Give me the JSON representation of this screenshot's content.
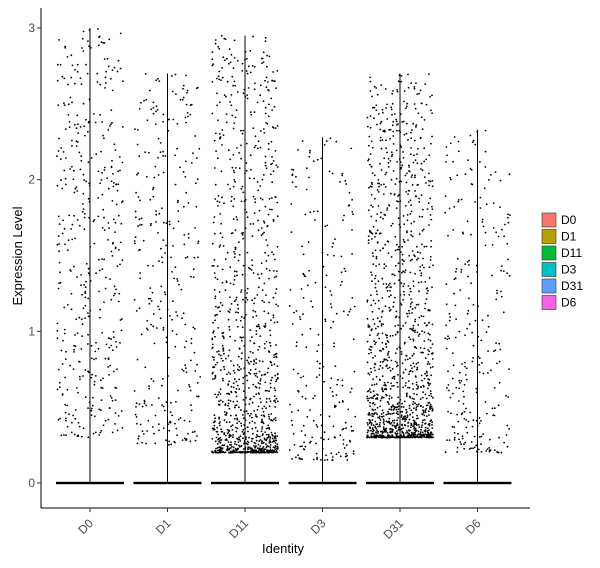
{
  "chart_data": {
    "type": "scatter",
    "subtype": "violin-jitter",
    "title": "",
    "xlabel": "Identity",
    "ylabel": "Expression Level",
    "categories": [
      "D0",
      "D1",
      "D11",
      "D3",
      "D31",
      "D6"
    ],
    "colors": [
      "#F8766D",
      "#B79F00",
      "#00BA38",
      "#00BFC4",
      "#619CFF",
      "#F564E3"
    ],
    "ylim": [
      -0.17,
      3.05
    ],
    "yticks": [
      0,
      1,
      2,
      3
    ],
    "legend_position": "right",
    "grid": false,
    "series": [
      {
        "name": "D0",
        "max": 3.0,
        "zero_band": true,
        "nonzero_range": [
          0.3,
          3.0
        ],
        "density": "medium"
      },
      {
        "name": "D1",
        "max": 2.7,
        "zero_band": true,
        "nonzero_range": [
          0.25,
          2.7
        ],
        "density": "low"
      },
      {
        "name": "D11",
        "max": 2.95,
        "zero_band": true,
        "nonzero_range": [
          0.2,
          2.95
        ],
        "density": "high, concentrated 0.2-0.9"
      },
      {
        "name": "D3",
        "max": 2.28,
        "zero_band": true,
        "nonzero_range": [
          0.15,
          2.28
        ],
        "density": "low"
      },
      {
        "name": "D31",
        "max": 2.7,
        "zero_band": true,
        "nonzero_range": [
          0.3,
          2.7
        ],
        "density": "very high, concentrated 0.3-1.0"
      },
      {
        "name": "D6",
        "max": 2.33,
        "zero_band": true,
        "nonzero_range": [
          0.2,
          2.33
        ],
        "density": "low"
      }
    ]
  }
}
